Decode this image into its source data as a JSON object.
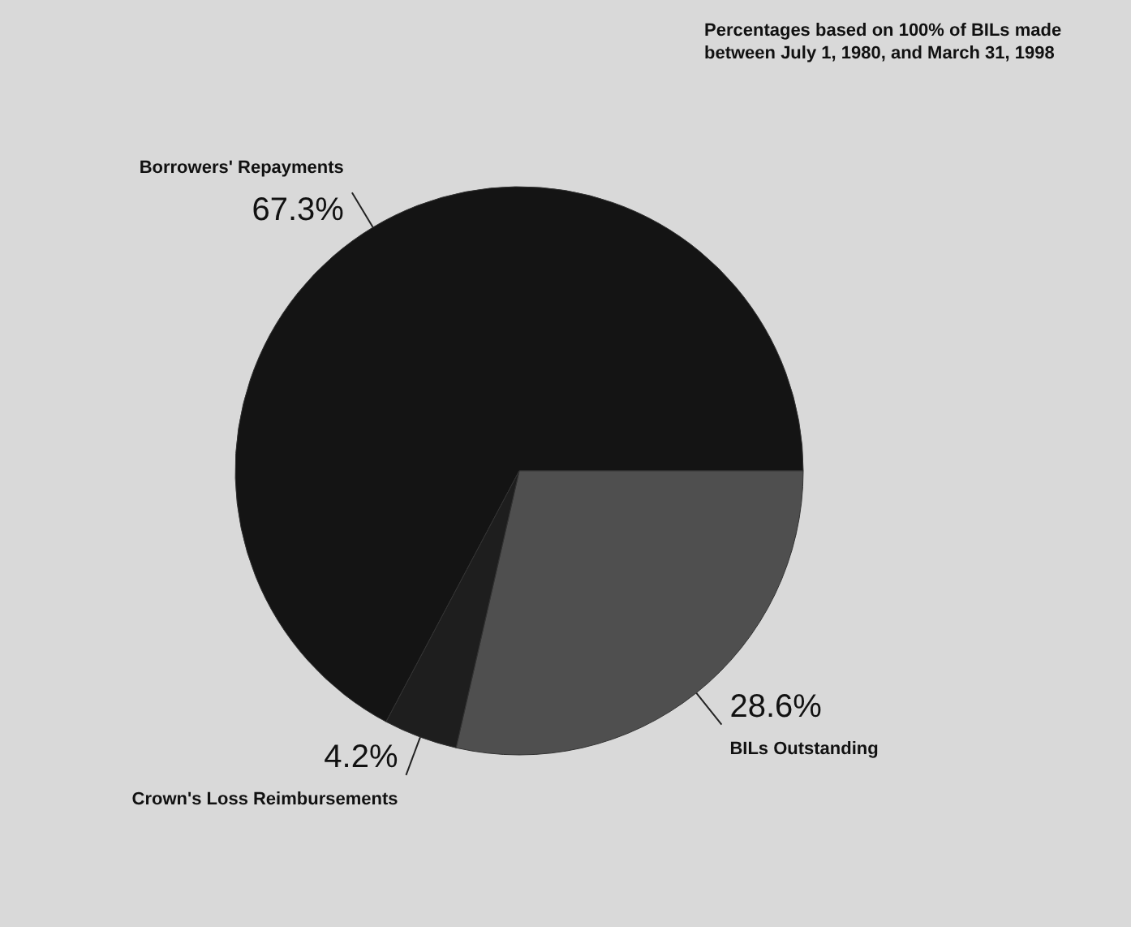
{
  "chart_data": {
    "type": "pie",
    "categories": [
      "Borrowers' Repayments",
      "BILs Outstanding",
      "Crown's Loss Reimbursements"
    ],
    "values": [
      67.3,
      28.6,
      4.2
    ],
    "value_labels": [
      "67.3%",
      "28.6%",
      "4.2%"
    ],
    "colors": [
      "#141414",
      "#4f4f4f",
      "#1e1e1e"
    ],
    "annotations": [
      "Percentages based on 100% of BILs made between July 1, 1980, and March 31, 1998"
    ],
    "legend": false
  }
}
